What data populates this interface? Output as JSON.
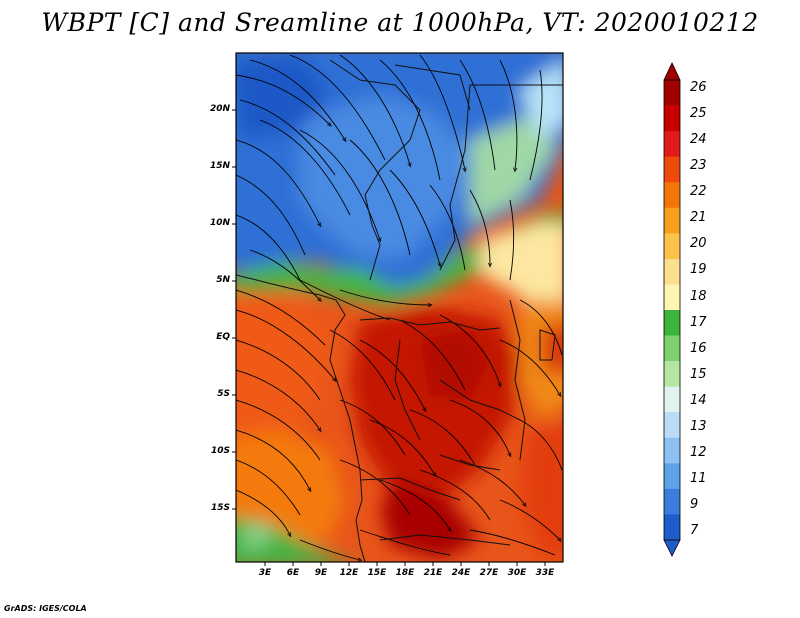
{
  "title": "WBPT [C] and Sreamline at 1000hPa, VT: 2020010212",
  "credit": "GrADS: IGES/COLA",
  "map": {
    "lat_labels": [
      "20N",
      "15N",
      "10N",
      "5N",
      "EQ",
      "5S",
      "10S",
      "15S"
    ],
    "lon_labels": [
      "3E",
      "6E",
      "9E",
      "12E",
      "15E",
      "18E",
      "21E",
      "24E",
      "27E",
      "30E",
      "33E"
    ]
  },
  "colorbar": {
    "labels": [
      "26",
      "25",
      "24",
      "23",
      "22",
      "21",
      "20",
      "19",
      "18",
      "17",
      "16",
      "15",
      "14",
      "13",
      "12",
      "11",
      "9",
      "7"
    ],
    "colors": [
      "#a50000",
      "#c80000",
      "#e31a1c",
      "#ee4a0e",
      "#f4750c",
      "#f7a01a",
      "#fcc14a",
      "#fde08c",
      "#fff4b4",
      "#3cb53c",
      "#7ed06b",
      "#b6e6a3",
      "#e2f4f2",
      "#b9dcf7",
      "#8ec1f1",
      "#5ea2ea",
      "#3a7edd",
      "#1e5cc9"
    ]
  }
}
